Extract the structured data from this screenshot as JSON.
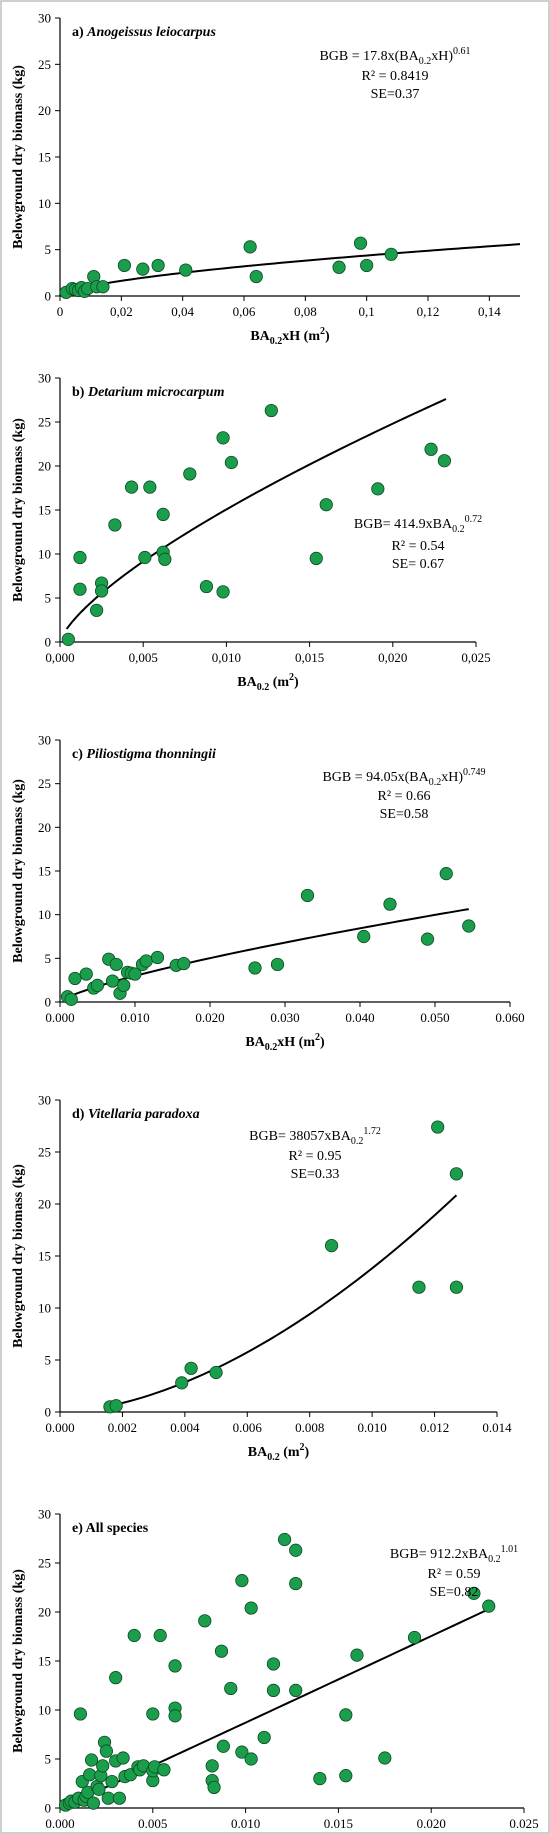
{
  "chart_data": [
    {
      "type": "scatter",
      "panel": "a)",
      "species": "Anogeissus leiocarpus",
      "ylabel": "Belowground dry biomass (kg)",
      "xlabel": "BA0.2xH (m²)",
      "xlim": [
        0,
        0.15
      ],
      "ylim": [
        0,
        30
      ],
      "xticks": [
        "0",
        "0,02",
        "0,04",
        "0,06",
        "0,08",
        "0,1",
        "0,12",
        "0,14"
      ],
      "xtick_values": [
        0,
        0.02,
        0.04,
        0.06,
        0.08,
        0.1,
        0.12,
        0.14
      ],
      "yticks": [
        "0",
        "5",
        "10",
        "15",
        "20",
        "25",
        "30"
      ],
      "equation": [
        "BGB = 17.8x(BA",
        "0.2",
        "xH)",
        "0.61"
      ],
      "r2": "R² = 0.8419",
      "se": "SE=0.37",
      "fit": {
        "a": 17.8,
        "b": 0.61,
        "xmin": 0.001,
        "xmax": 0.15
      },
      "x": [
        0.002,
        0.004,
        0.005,
        0.006,
        0.007,
        0.008,
        0.009,
        0.011,
        0.012,
        0.014,
        0.021,
        0.027,
        0.032,
        0.041,
        0.062,
        0.064,
        0.091,
        0.098,
        0.1,
        0.108
      ],
      "y": [
        0.4,
        0.8,
        0.7,
        0.6,
        0.9,
        0.5,
        0.8,
        2.1,
        1.0,
        1.0,
        3.3,
        2.9,
        3.3,
        2.8,
        5.3,
        2.1,
        3.1,
        5.7,
        3.3,
        4.5
      ]
    },
    {
      "type": "scatter",
      "panel": "b)",
      "species": "Detarium microcarpum",
      "ylabel": "Belowground dry biomass (kg)",
      "xlabel": "BA0.2 (m²)",
      "xlim": [
        0,
        0.025
      ],
      "ylim": [
        0,
        30
      ],
      "xticks": [
        "0,000",
        "0,005",
        "0,010",
        "0,015",
        "0,020",
        "0,025"
      ],
      "xtick_values": [
        0,
        0.005,
        0.01,
        0.015,
        0.02,
        0.025
      ],
      "yticks": [
        "0",
        "5",
        "10",
        "15",
        "20",
        "25",
        "30"
      ],
      "equation": [
        "BGB= 414.9xBA",
        "0.2",
        "",
        "0.72"
      ],
      "r2": "R² = 0.54",
      "se": "SE= 0.67",
      "fit": {
        "a": 414.9,
        "b": 0.72,
        "xmin": 0.0004,
        "xmax": 0.0232
      },
      "x": [
        0.0005,
        0.0012,
        0.0012,
        0.0022,
        0.0025,
        0.0025,
        0.0033,
        0.0043,
        0.0051,
        0.0054,
        0.0062,
        0.0062,
        0.0063,
        0.0078,
        0.0088,
        0.0098,
        0.0098,
        0.0103,
        0.0127,
        0.0154,
        0.016,
        0.0191,
        0.0223,
        0.0231
      ],
      "y": [
        0.3,
        6.0,
        9.6,
        3.6,
        6.7,
        5.8,
        13.3,
        17.6,
        9.6,
        17.6,
        14.5,
        10.2,
        9.4,
        19.1,
        6.3,
        23.2,
        5.7,
        20.4,
        26.3,
        9.5,
        15.6,
        17.4,
        21.9,
        20.6
      ]
    },
    {
      "type": "scatter",
      "panel": "c)",
      "species": "Piliostigma thonningii",
      "ylabel": "Belowground dry biomass (kg)",
      "xlabel": "BA0.2xH (m²)",
      "xlim": [
        0,
        0.06
      ],
      "ylim": [
        0,
        30
      ],
      "xticks": [
        "0.000",
        "0.010",
        "0.020",
        "0.030",
        "0.040",
        "0.050",
        "0.060"
      ],
      "xtick_values": [
        0,
        0.01,
        0.02,
        0.03,
        0.04,
        0.05,
        0.06
      ],
      "yticks": [
        "0",
        "5",
        "10",
        "15",
        "20",
        "25",
        "30"
      ],
      "equation": [
        "BGB = 94.05x(BA",
        "0.2",
        "xH)",
        "0.749"
      ],
      "r2": "R² = 0.66",
      "se": "SE=0.58",
      "fit": {
        "a": 94.05,
        "b": 0.749,
        "xmin": 0.0006,
        "xmax": 0.0545
      },
      "x": [
        0.001,
        0.0015,
        0.002,
        0.0035,
        0.0045,
        0.005,
        0.0065,
        0.007,
        0.0075,
        0.008,
        0.0085,
        0.009,
        0.0095,
        0.01,
        0.011,
        0.0115,
        0.013,
        0.0155,
        0.0165,
        0.026,
        0.029,
        0.033,
        0.0405,
        0.044,
        0.049,
        0.0515,
        0.0545
      ],
      "y": [
        0.6,
        0.3,
        2.7,
        3.2,
        1.6,
        1.9,
        4.9,
        2.4,
        4.3,
        1.0,
        1.9,
        3.4,
        3.3,
        3.2,
        4.3,
        4.7,
        5.1,
        4.2,
        4.4,
        3.9,
        4.3,
        12.2,
        7.5,
        11.2,
        7.2,
        14.7,
        8.7
      ]
    },
    {
      "type": "scatter",
      "panel": "d)",
      "species": "Vitellaria paradoxa",
      "ylabel": "Belowground dry biomass (kg)",
      "xlabel": "BA0.2 (m²)",
      "xlim": [
        0,
        0.014
      ],
      "ylim": [
        0,
        30
      ],
      "xticks": [
        "0.000",
        "0.002",
        "0.004",
        "0.006",
        "0.008",
        "0.010",
        "0.012",
        "0.014"
      ],
      "xtick_values": [
        0,
        0.002,
        0.004,
        0.006,
        0.008,
        0.01,
        0.012,
        0.014
      ],
      "yticks": [
        "0",
        "5",
        "10",
        "15",
        "20",
        "25",
        "30"
      ],
      "equation": [
        "BGB= 38057xBA",
        "0.2",
        "",
        "1.72"
      ],
      "r2": "R² = 0.95",
      "se": "SE=0.33",
      "fit": {
        "a": 38057,
        "b": 1.72,
        "xmin": 0.0015,
        "xmax": 0.0127
      },
      "x": [
        0.0016,
        0.0018,
        0.0039,
        0.0042,
        0.005,
        0.0087,
        0.0115,
        0.0121,
        0.0127,
        0.0127
      ],
      "y": [
        0.5,
        0.6,
        2.8,
        4.2,
        3.8,
        16.0,
        12.0,
        27.4,
        22.9,
        12.0
      ]
    },
    {
      "type": "scatter",
      "panel": "e)",
      "species": "All species",
      "ylabel": "Belowground dry biomass (kg)",
      "xlabel": "BA0.2 (m²)",
      "xlim": [
        0,
        0.025
      ],
      "ylim": [
        0,
        30
      ],
      "xticks": [
        "0.000",
        "0.005",
        "0.010",
        "0.015",
        "0.020",
        "0.025"
      ],
      "xtick_values": [
        0,
        0.005,
        0.01,
        0.015,
        0.02,
        0.025
      ],
      "yticks": [
        "0",
        "5",
        "10",
        "15",
        "20",
        "25",
        "30"
      ],
      "equation": [
        "BGB= 912.2xBA",
        "0.2",
        "",
        "1.01"
      ],
      "r2": "R² = 0.59",
      "se": "SE=0.82",
      "fit": {
        "a": 912.2,
        "b": 1.01,
        "xmin": 0.0003,
        "xmax": 0.0232
      },
      "x": [
        0.0003,
        0.0005,
        0.0006,
        0.0008,
        0.001,
        0.0011,
        0.0012,
        0.0013,
        0.0014,
        0.0015,
        0.0016,
        0.0017,
        0.0018,
        0.002,
        0.0021,
        0.0022,
        0.0023,
        0.0024,
        0.0025,
        0.0026,
        0.0028,
        0.003,
        0.003,
        0.0032,
        0.0034,
        0.0035,
        0.0038,
        0.004,
        0.0042,
        0.0043,
        0.0045,
        0.005,
        0.005,
        0.005,
        0.0051,
        0.0054,
        0.0056,
        0.0062,
        0.0062,
        0.0062,
        0.0078,
        0.0082,
        0.0082,
        0.0083,
        0.0087,
        0.0088,
        0.0092,
        0.0098,
        0.0098,
        0.0103,
        0.0103,
        0.011,
        0.0115,
        0.0115,
        0.0121,
        0.0127,
        0.0127,
        0.0127,
        0.014,
        0.0154,
        0.0154,
        0.016,
        0.0175,
        0.0191,
        0.0223,
        0.0231
      ],
      "y": [
        0.3,
        0.5,
        0.7,
        0.6,
        1.0,
        9.6,
        2.7,
        0.8,
        1.2,
        1.6,
        3.4,
        4.9,
        0.5,
        2.2,
        1.9,
        3.3,
        4.3,
        6.7,
        5.8,
        1.0,
        2.7,
        13.3,
        4.8,
        1.0,
        5.1,
        3.2,
        3.4,
        17.6,
        4.2,
        3.9,
        4.3,
        2.8,
        3.8,
        9.6,
        4.2,
        17.6,
        3.9,
        14.5,
        10.2,
        9.4,
        19.1,
        2.8,
        4.3,
        2.1,
        16.0,
        6.3,
        12.2,
        23.2,
        5.7,
        20.4,
        5.0,
        7.2,
        12.0,
        14.7,
        27.4,
        26.3,
        22.9,
        12.0,
        3.0,
        9.5,
        3.3,
        15.6,
        5.1,
        17.4,
        21.9,
        20.6
      ]
    }
  ]
}
